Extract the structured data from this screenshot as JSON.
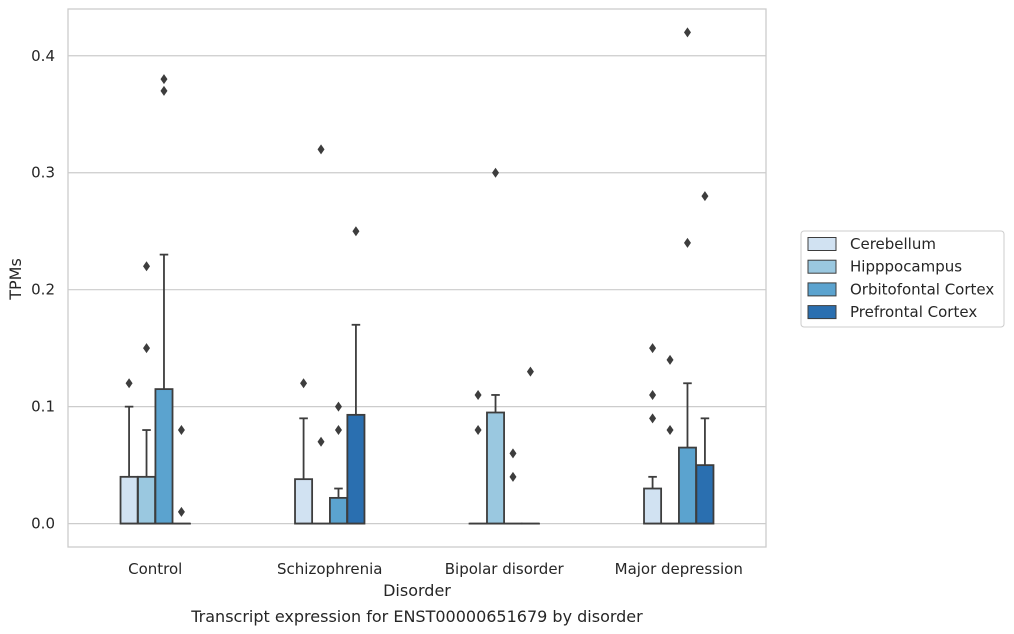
{
  "chart_data": {
    "type": "box",
    "title": "",
    "caption": "Transcript expression for ENST00000651679 by disorder",
    "xlabel": "Disorder",
    "ylabel": "TPMs",
    "ylim": [
      -0.02,
      0.44
    ],
    "yticks": [
      0.0,
      0.1,
      0.2,
      0.3,
      0.4
    ],
    "ytick_labels": [
      "0.0",
      "0.1",
      "0.2",
      "0.3",
      "0.4"
    ],
    "grid": "horizontal",
    "legend_position": "right",
    "categories": [
      "Control",
      "Schizophrenia",
      "Bipolar disorder",
      "Major depression"
    ],
    "series": [
      {
        "name": "Cerebellum",
        "color": "#d1e2f2",
        "boxes": [
          {
            "q1": 0.0,
            "median": 0.0,
            "q3": 0.04,
            "whisker_low": 0.0,
            "whisker_high": 0.1,
            "outliers": [
              0.12
            ]
          },
          {
            "q1": 0.0,
            "median": 0.0,
            "q3": 0.038,
            "whisker_low": 0.0,
            "whisker_high": 0.09,
            "outliers": [
              0.12
            ]
          },
          {
            "q1": 0.0,
            "median": 0.0,
            "q3": 0.0,
            "whisker_low": 0.0,
            "whisker_high": 0.0,
            "outliers": [
              0.08,
              0.11
            ]
          },
          {
            "q1": 0.0,
            "median": 0.0,
            "q3": 0.03,
            "whisker_low": 0.0,
            "whisker_high": 0.04,
            "outliers": [
              0.09,
              0.11,
              0.15
            ]
          }
        ]
      },
      {
        "name": "Hipppocampus",
        "color": "#9ac8e0",
        "boxes": [
          {
            "q1": 0.0,
            "median": 0.0,
            "q3": 0.04,
            "whisker_low": 0.0,
            "whisker_high": 0.08,
            "outliers": [
              0.15,
              0.22
            ]
          },
          {
            "q1": 0.0,
            "median": 0.0,
            "q3": 0.0,
            "whisker_low": 0.0,
            "whisker_high": 0.0,
            "outliers": [
              0.07,
              0.32
            ]
          },
          {
            "q1": 0.0,
            "median": 0.0,
            "q3": 0.095,
            "whisker_low": 0.0,
            "whisker_high": 0.11,
            "outliers": [
              0.3
            ]
          },
          {
            "q1": 0.0,
            "median": 0.0,
            "q3": 0.0,
            "whisker_low": 0.0,
            "whisker_high": 0.0,
            "outliers": [
              0.08,
              0.14
            ]
          }
        ]
      },
      {
        "name": "Orbitofontal Cortex",
        "color": "#5ba3cf",
        "boxes": [
          {
            "q1": 0.0,
            "median": 0.0,
            "q3": 0.115,
            "whisker_low": 0.0,
            "whisker_high": 0.23,
            "outliers": [
              0.37,
              0.38
            ]
          },
          {
            "q1": 0.0,
            "median": 0.0,
            "q3": 0.022,
            "whisker_low": 0.0,
            "whisker_high": 0.03,
            "outliers": [
              0.08,
              0.1
            ]
          },
          {
            "q1": 0.0,
            "median": 0.0,
            "q3": 0.0,
            "whisker_low": 0.0,
            "whisker_high": 0.0,
            "outliers": [
              0.04,
              0.06
            ]
          },
          {
            "q1": 0.0,
            "median": 0.0,
            "q3": 0.065,
            "whisker_low": 0.0,
            "whisker_high": 0.12,
            "outliers": [
              0.24,
              0.42
            ]
          }
        ]
      },
      {
        "name": "Prefrontal Cortex",
        "color": "#2a6fb0",
        "boxes": [
          {
            "q1": 0.0,
            "median": 0.0,
            "q3": 0.0,
            "whisker_low": 0.0,
            "whisker_high": 0.0,
            "outliers": [
              0.01,
              0.08
            ]
          },
          {
            "q1": 0.0,
            "median": 0.0,
            "q3": 0.093,
            "whisker_low": 0.0,
            "whisker_high": 0.17,
            "outliers": [
              0.25
            ]
          },
          {
            "q1": 0.0,
            "median": 0.0,
            "q3": 0.0,
            "whisker_low": 0.0,
            "whisker_high": 0.0,
            "outliers": [
              0.13
            ]
          },
          {
            "q1": 0.0,
            "median": 0.0,
            "q3": 0.05,
            "whisker_low": 0.0,
            "whisker_high": 0.09,
            "outliers": [
              0.28
            ]
          }
        ]
      }
    ]
  }
}
